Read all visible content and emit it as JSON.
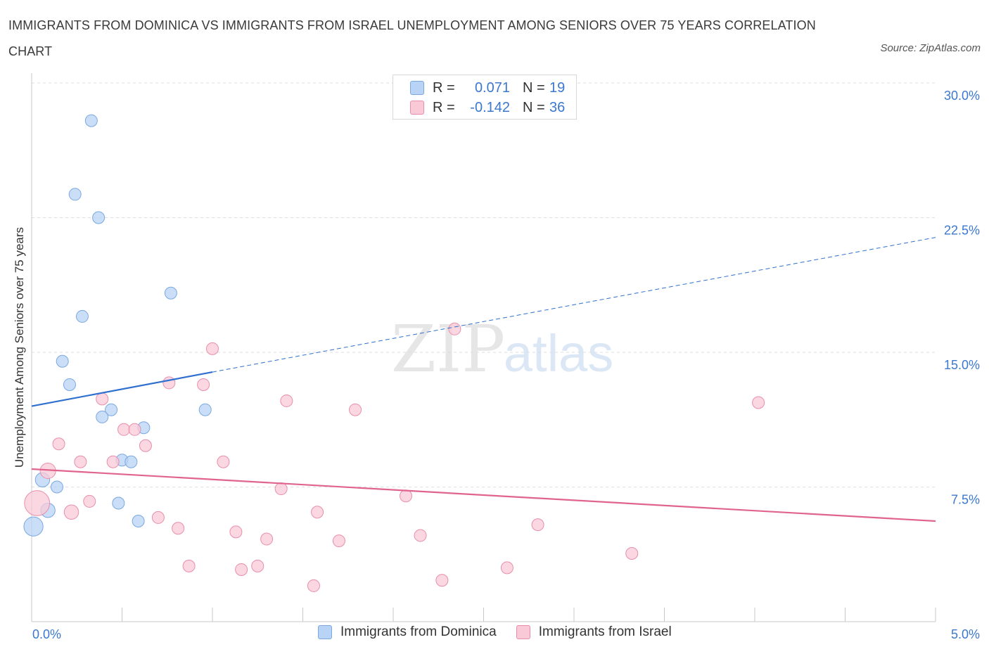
{
  "title": "IMMIGRANTS FROM DOMINICA VS IMMIGRANTS FROM ISRAEL UNEMPLOYMENT AMONG SENIORS OVER 75 YEARS CORRELATION CHART",
  "source": "Source: ZipAtlas.com",
  "watermark": {
    "zip": "ZIP",
    "atlas": "atlas"
  },
  "legend_top": {
    "rows": [
      {
        "r_label": "R =",
        "r_value": "0.071",
        "n_label": "N =",
        "n_value": "19"
      },
      {
        "r_label": "R =",
        "r_value": "-0.142",
        "n_label": "N =",
        "n_value": "36"
      }
    ]
  },
  "legend_bottom": {
    "items": [
      {
        "label": "Immigrants from Dominica"
      },
      {
        "label": "Immigrants from Israel"
      }
    ]
  },
  "colors": {
    "dominica_fill": "#b8d3f5",
    "dominica_stroke": "#7aa8e0",
    "dominica_line": "#2f6fcf",
    "israel_fill": "#f9c9d8",
    "israel_stroke": "#e88eac",
    "israel_line": "#e0648e",
    "tick_label": "#3b78d0",
    "grid": "#dddddd"
  },
  "chart_data": {
    "type": "scatter",
    "title": "IMMIGRANTS FROM DOMINICA VS IMMIGRANTS FROM ISRAEL UNEMPLOYMENT AMONG SENIORS OVER 75 YEARS CORRELATION CHART",
    "xlabel": "",
    "ylabel": "Unemployment Among Seniors over 75 years",
    "xlim": [
      0,
      5.0
    ],
    "ylim": [
      0,
      30.0
    ],
    "x_tick_labels": [
      "0.0%",
      "5.0%"
    ],
    "y_ticks": [
      7.5,
      15.0,
      22.5,
      30.0
    ],
    "y_tick_labels": [
      "7.5%",
      "15.0%",
      "22.5%",
      "30.0%"
    ],
    "grid": true,
    "legend_position": "bottom",
    "series": [
      {
        "name": "Immigrants from Dominica",
        "r": 0.071,
        "n": 19,
        "trend": {
          "x": [
            0.0,
            1.0
          ],
          "y": [
            12.0,
            13.9
          ]
        },
        "trend_extended": {
          "x": [
            1.0,
            5.0
          ],
          "y": [
            13.9,
            21.4
          ]
        },
        "points": [
          {
            "x": 0.33,
            "y": 27.9,
            "size": 1
          },
          {
            "x": 0.24,
            "y": 23.8,
            "size": 1
          },
          {
            "x": 0.37,
            "y": 22.5,
            "size": 1
          },
          {
            "x": 0.77,
            "y": 18.3,
            "size": 1
          },
          {
            "x": 0.28,
            "y": 17.0,
            "size": 1
          },
          {
            "x": 0.17,
            "y": 14.5,
            "size": 1
          },
          {
            "x": 0.21,
            "y": 13.2,
            "size": 1
          },
          {
            "x": 0.44,
            "y": 11.8,
            "size": 1
          },
          {
            "x": 0.96,
            "y": 11.8,
            "size": 1
          },
          {
            "x": 0.39,
            "y": 11.4,
            "size": 1
          },
          {
            "x": 0.62,
            "y": 10.8,
            "size": 1
          },
          {
            "x": 0.5,
            "y": 9.0,
            "size": 1
          },
          {
            "x": 0.55,
            "y": 8.9,
            "size": 1
          },
          {
            "x": 0.06,
            "y": 7.9,
            "size": 1.2
          },
          {
            "x": 0.14,
            "y": 7.5,
            "size": 1
          },
          {
            "x": 0.48,
            "y": 6.6,
            "size": 1
          },
          {
            "x": 0.09,
            "y": 6.2,
            "size": 1.2
          },
          {
            "x": 0.59,
            "y": 5.6,
            "size": 1
          },
          {
            "x": 0.01,
            "y": 5.3,
            "size": 1.6
          }
        ]
      },
      {
        "name": "Immigrants from Israel",
        "r": -0.142,
        "n": 36,
        "trend": {
          "x": [
            0.0,
            5.0
          ],
          "y": [
            8.5,
            5.6
          ]
        },
        "points": [
          {
            "x": 2.34,
            "y": 16.3,
            "size": 1
          },
          {
            "x": 1.0,
            "y": 15.2,
            "size": 1
          },
          {
            "x": 0.76,
            "y": 13.3,
            "size": 1
          },
          {
            "x": 0.95,
            "y": 13.2,
            "size": 1
          },
          {
            "x": 0.39,
            "y": 12.4,
            "size": 1
          },
          {
            "x": 1.41,
            "y": 12.3,
            "size": 1
          },
          {
            "x": 4.02,
            "y": 12.2,
            "size": 1
          },
          {
            "x": 1.79,
            "y": 11.8,
            "size": 1
          },
          {
            "x": 0.51,
            "y": 10.7,
            "size": 1
          },
          {
            "x": 0.57,
            "y": 10.7,
            "size": 1
          },
          {
            "x": 0.15,
            "y": 9.9,
            "size": 1
          },
          {
            "x": 0.63,
            "y": 9.8,
            "size": 1
          },
          {
            "x": 0.27,
            "y": 8.9,
            "size": 1
          },
          {
            "x": 0.45,
            "y": 8.9,
            "size": 1
          },
          {
            "x": 1.06,
            "y": 8.9,
            "size": 1
          },
          {
            "x": 0.09,
            "y": 8.4,
            "size": 1.3
          },
          {
            "x": 1.38,
            "y": 7.4,
            "size": 1
          },
          {
            "x": 2.07,
            "y": 7.0,
            "size": 1
          },
          {
            "x": 0.03,
            "y": 6.6,
            "size": 2.1
          },
          {
            "x": 0.32,
            "y": 6.7,
            "size": 1
          },
          {
            "x": 0.22,
            "y": 6.1,
            "size": 1.2
          },
          {
            "x": 1.58,
            "y": 6.1,
            "size": 1
          },
          {
            "x": 0.7,
            "y": 5.8,
            "size": 1
          },
          {
            "x": 2.8,
            "y": 5.4,
            "size": 1
          },
          {
            "x": 0.81,
            "y": 5.2,
            "size": 1
          },
          {
            "x": 1.13,
            "y": 5.0,
            "size": 1
          },
          {
            "x": 2.15,
            "y": 4.8,
            "size": 1
          },
          {
            "x": 1.3,
            "y": 4.6,
            "size": 1
          },
          {
            "x": 1.7,
            "y": 4.5,
            "size": 1
          },
          {
            "x": 3.32,
            "y": 3.8,
            "size": 1
          },
          {
            "x": 0.87,
            "y": 3.1,
            "size": 1
          },
          {
            "x": 1.25,
            "y": 3.1,
            "size": 1
          },
          {
            "x": 1.16,
            "y": 2.9,
            "size": 1
          },
          {
            "x": 2.63,
            "y": 3.0,
            "size": 1
          },
          {
            "x": 1.56,
            "y": 2.0,
            "size": 1
          },
          {
            "x": 2.27,
            "y": 2.3,
            "size": 1
          }
        ]
      }
    ]
  }
}
